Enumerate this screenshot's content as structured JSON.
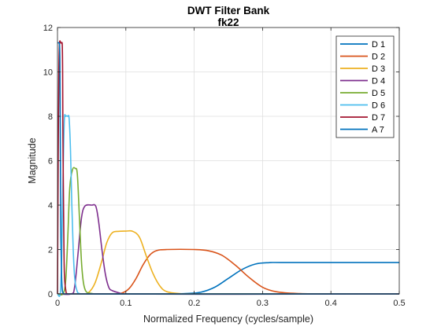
{
  "chart_data": {
    "type": "line",
    "title": "DWT Filter Bank",
    "subtitle": "fk22",
    "xlabel": "Normalized Frequency  (cycles/sample)",
    "ylabel": "Magnitude",
    "xlim": [
      0,
      0.5
    ],
    "ylim": [
      0,
      12
    ],
    "xticks": [
      0,
      0.1,
      0.2,
      0.3,
      0.4,
      0.5
    ],
    "xtick_labels": [
      "0",
      "0.1",
      "0.2",
      "0.3",
      "0.4",
      "0.5"
    ],
    "yticks": [
      0,
      2,
      4,
      6,
      8,
      10,
      12
    ],
    "ytick_labels": [
      "0",
      "2",
      "4",
      "6",
      "8",
      "10",
      "12"
    ],
    "grid": true,
    "legend_position": "top-right",
    "series": [
      {
        "name": "D 1",
        "color": "#0072BD",
        "x": [
          0,
          0.15,
          0.19,
          0.21,
          0.23,
          0.25,
          0.27,
          0.29,
          0.31,
          0.33,
          0.5
        ],
        "y": [
          0,
          0,
          0.02,
          0.08,
          0.3,
          0.7,
          1.1,
          1.35,
          1.41,
          1.414,
          1.414
        ]
      },
      {
        "name": "D 2",
        "color": "#D95319",
        "x": [
          0,
          0.08,
          0.095,
          0.105,
          0.115,
          0.125,
          0.135,
          0.145,
          0.16,
          0.2,
          0.22,
          0.24,
          0.26,
          0.28,
          0.3,
          0.32,
          0.35,
          0.4,
          0.5
        ],
        "y": [
          0,
          0,
          0.05,
          0.25,
          0.7,
          1.3,
          1.75,
          1.95,
          2.0,
          2.0,
          1.95,
          1.75,
          1.3,
          0.75,
          0.3,
          0.1,
          0.02,
          0,
          0
        ]
      },
      {
        "name": "D 3",
        "color": "#EDB120",
        "x": [
          0,
          0.035,
          0.045,
          0.055,
          0.065,
          0.072,
          0.08,
          0.09,
          0.1,
          0.11,
          0.12,
          0.13,
          0.14,
          0.15,
          0.16,
          0.18,
          0.2,
          0.5
        ],
        "y": [
          0,
          0,
          0.05,
          0.5,
          1.5,
          2.3,
          2.75,
          2.82,
          2.83,
          2.82,
          2.55,
          1.7,
          0.9,
          0.35,
          0.1,
          0.01,
          0,
          0
        ]
      },
      {
        "name": "D 4",
        "color": "#7E2F8E",
        "x": [
          0,
          0.02,
          0.025,
          0.03,
          0.035,
          0.04,
          0.05,
          0.056,
          0.06,
          0.065,
          0.07,
          0.075,
          0.08,
          0.09,
          0.1,
          0.5
        ],
        "y": [
          0,
          0,
          0.3,
          1.8,
          3.4,
          3.95,
          4.0,
          3.95,
          3.3,
          2.0,
          0.9,
          0.3,
          0.15,
          0.05,
          0,
          0
        ]
      },
      {
        "name": "D 5",
        "color": "#77AC30",
        "x": [
          0,
          0.008,
          0.012,
          0.015,
          0.018,
          0.022,
          0.026,
          0.029,
          0.032,
          0.035,
          0.038,
          0.042,
          0.05,
          0.06,
          0.5
        ],
        "y": [
          0,
          0,
          0.6,
          2.5,
          4.8,
          5.6,
          5.65,
          5.4,
          3.5,
          1.5,
          0.5,
          0.1,
          0.02,
          0,
          0
        ]
      },
      {
        "name": "D 6",
        "color": "#4DBEEE",
        "x": [
          0,
          0.004,
          0.006,
          0.008,
          0.01,
          0.012,
          0.015,
          0.017,
          0.019,
          0.021,
          0.023,
          0.025,
          0.028,
          0.035,
          0.5
        ],
        "y": [
          0,
          0,
          1.5,
          5.0,
          7.8,
          8.0,
          8.0,
          7.9,
          6.5,
          4.0,
          2.0,
          0.8,
          0.2,
          0,
          0
        ]
      },
      {
        "name": "D 7",
        "color": "#A2142F",
        "x": [
          0,
          0.001,
          0.002,
          0.003,
          0.005,
          0.006,
          0.007,
          0.0075,
          0.008,
          0.009,
          0.01,
          0.012,
          0.015,
          0.5
        ],
        "y": [
          0,
          6.0,
          10.0,
          11.3,
          11.3,
          11.3,
          11.2,
          10.0,
          7.0,
          3.5,
          1.0,
          0.2,
          0,
          0
        ]
      },
      {
        "name": "A 7",
        "color": "#0072BD",
        "x": [
          0,
          0.001,
          0.002,
          0.003,
          0.0035,
          0.004,
          0.0045,
          0.005,
          0.006,
          0.007,
          0.008,
          0.01,
          0.5
        ],
        "y": [
          11.31,
          11.31,
          11.31,
          11.2,
          10.5,
          8.0,
          5.0,
          2.5,
          0.8,
          0.2,
          0.05,
          0,
          0
        ]
      }
    ]
  }
}
